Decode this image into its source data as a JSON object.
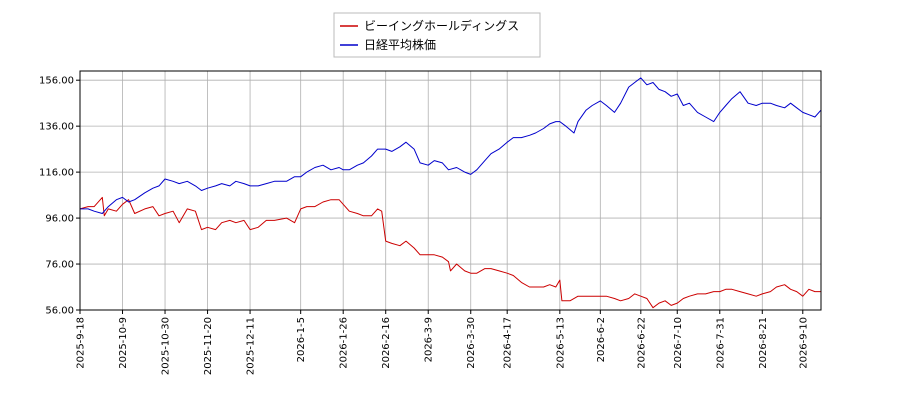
{
  "chart_data": {
    "type": "line",
    "title": "",
    "xlabel": "",
    "ylabel": "",
    "ylim": [
      56,
      160
    ],
    "xlim": [
      "2025-09-18",
      "2026-09-19"
    ],
    "grid": true,
    "legend_position": "top-center",
    "yticks": [
      {
        "value": 56,
        "label": "56.00"
      },
      {
        "value": 76,
        "label": "76.00"
      },
      {
        "value": 96,
        "label": "96.00"
      },
      {
        "value": 116,
        "label": "116.00"
      },
      {
        "value": 136,
        "label": "136.00"
      },
      {
        "value": 156,
        "label": "156.00"
      }
    ],
    "xticks": [
      {
        "date": "2025-09-18",
        "label": "2025-9-18"
      },
      {
        "date": "2025-10-09",
        "label": "2025-10-9"
      },
      {
        "date": "2025-10-30",
        "label": "2025-10-30"
      },
      {
        "date": "2025-11-20",
        "label": "2025-11-20"
      },
      {
        "date": "2025-12-11",
        "label": "2025-12-11"
      },
      {
        "date": "2026-01-05",
        "label": "2026-1-5"
      },
      {
        "date": "2026-01-26",
        "label": "2026-1-26"
      },
      {
        "date": "2026-02-16",
        "label": "2026-2-16"
      },
      {
        "date": "2026-03-09",
        "label": "2026-3-9"
      },
      {
        "date": "2026-03-30",
        "label": "2026-3-30"
      },
      {
        "date": "2026-04-17",
        "label": "2026-4-17"
      },
      {
        "date": "2026-05-13",
        "label": "2026-5-13"
      },
      {
        "date": "2026-06-02",
        "label": "2026-6-2"
      },
      {
        "date": "2026-06-22",
        "label": "2026-6-22"
      },
      {
        "date": "2026-07-10",
        "label": "2026-7-10"
      },
      {
        "date": "2026-07-31",
        "label": "2026-7-31"
      },
      {
        "date": "2026-08-21",
        "label": "2026-8-21"
      },
      {
        "date": "2026-09-10",
        "label": "2026-9-10"
      }
    ],
    "series": [
      {
        "name": "ビーイングホールディングス",
        "color": "#cc0000",
        "points": [
          [
            "2025-09-18",
            100
          ],
          [
            "2025-09-22",
            101
          ],
          [
            "2025-09-25",
            101
          ],
          [
            "2025-09-29",
            105
          ],
          [
            "2025-09-30",
            97
          ],
          [
            "2025-10-02",
            100
          ],
          [
            "2025-10-06",
            99
          ],
          [
            "2025-10-09",
            102
          ],
          [
            "2025-10-12",
            104
          ],
          [
            "2025-10-15",
            98
          ],
          [
            "2025-10-20",
            100
          ],
          [
            "2025-10-24",
            101
          ],
          [
            "2025-10-27",
            97
          ],
          [
            "2025-10-30",
            98
          ],
          [
            "2025-11-03",
            99
          ],
          [
            "2025-11-06",
            94
          ],
          [
            "2025-11-10",
            100
          ],
          [
            "2025-11-14",
            99
          ],
          [
            "2025-11-17",
            91
          ],
          [
            "2025-11-20",
            92
          ],
          [
            "2025-11-24",
            91
          ],
          [
            "2025-11-27",
            94
          ],
          [
            "2025-12-01",
            95
          ],
          [
            "2025-12-04",
            94
          ],
          [
            "2025-12-08",
            95
          ],
          [
            "2025-12-11",
            91
          ],
          [
            "2025-12-15",
            92
          ],
          [
            "2025-12-19",
            95
          ],
          [
            "2025-12-23",
            95
          ],
          [
            "2025-12-29",
            96
          ],
          [
            "2026-01-02",
            94
          ],
          [
            "2026-01-05",
            100
          ],
          [
            "2026-01-08",
            101
          ],
          [
            "2026-01-12",
            101
          ],
          [
            "2026-01-16",
            103
          ],
          [
            "2026-01-20",
            104
          ],
          [
            "2026-01-24",
            104
          ],
          [
            "2026-01-26",
            102
          ],
          [
            "2026-01-29",
            99
          ],
          [
            "2026-02-02",
            98
          ],
          [
            "2026-02-05",
            97
          ],
          [
            "2026-02-09",
            97
          ],
          [
            "2026-02-12",
            100
          ],
          [
            "2026-02-14",
            99
          ],
          [
            "2026-02-16",
            86
          ],
          [
            "2026-02-19",
            85
          ],
          [
            "2026-02-23",
            84
          ],
          [
            "2026-02-26",
            86
          ],
          [
            "2026-03-02",
            83
          ],
          [
            "2026-03-05",
            80
          ],
          [
            "2026-03-09",
            80
          ],
          [
            "2026-03-12",
            80
          ],
          [
            "2026-03-16",
            79
          ],
          [
            "2026-03-19",
            77
          ],
          [
            "2026-03-20",
            73
          ],
          [
            "2026-03-23",
            76
          ],
          [
            "2026-03-27",
            73
          ],
          [
            "2026-03-30",
            72
          ],
          [
            "2026-04-02",
            72
          ],
          [
            "2026-04-06",
            74
          ],
          [
            "2026-04-09",
            74
          ],
          [
            "2026-04-13",
            73
          ],
          [
            "2026-04-17",
            72
          ],
          [
            "2026-04-20",
            71
          ],
          [
            "2026-04-24",
            68
          ],
          [
            "2026-04-28",
            66
          ],
          [
            "2026-05-01",
            66
          ],
          [
            "2026-05-05",
            66
          ],
          [
            "2026-05-08",
            67
          ],
          [
            "2026-05-11",
            66
          ],
          [
            "2026-05-13",
            69
          ],
          [
            "2026-05-14",
            60
          ],
          [
            "2026-05-18",
            60
          ],
          [
            "2026-05-22",
            62
          ],
          [
            "2026-05-26",
            62
          ],
          [
            "2026-05-29",
            62
          ],
          [
            "2026-06-02",
            62
          ],
          [
            "2026-06-05",
            62
          ],
          [
            "2026-06-09",
            61
          ],
          [
            "2026-06-12",
            60
          ],
          [
            "2026-06-16",
            61
          ],
          [
            "2026-06-19",
            63
          ],
          [
            "2026-06-22",
            62
          ],
          [
            "2026-06-25",
            61
          ],
          [
            "2026-06-28",
            57
          ],
          [
            "2026-07-01",
            59
          ],
          [
            "2026-07-04",
            60
          ],
          [
            "2026-07-07",
            58
          ],
          [
            "2026-07-10",
            59
          ],
          [
            "2026-07-13",
            61
          ],
          [
            "2026-07-16",
            62
          ],
          [
            "2026-07-20",
            63
          ],
          [
            "2026-07-24",
            63
          ],
          [
            "2026-07-28",
            64
          ],
          [
            "2026-07-31",
            64
          ],
          [
            "2026-08-03",
            65
          ],
          [
            "2026-08-06",
            65
          ],
          [
            "2026-08-10",
            64
          ],
          [
            "2026-08-14",
            63
          ],
          [
            "2026-08-18",
            62
          ],
          [
            "2026-08-21",
            63
          ],
          [
            "2026-08-25",
            64
          ],
          [
            "2026-08-28",
            66
          ],
          [
            "2026-09-01",
            67
          ],
          [
            "2026-09-04",
            65
          ],
          [
            "2026-09-07",
            64
          ],
          [
            "2026-09-10",
            62
          ],
          [
            "2026-09-13",
            65
          ],
          [
            "2026-09-16",
            64
          ],
          [
            "2026-09-19",
            64
          ]
        ]
      },
      {
        "name": "日経平均株価",
        "color": "#0000cc",
        "points": [
          [
            "2025-09-18",
            100
          ],
          [
            "2025-09-22",
            100
          ],
          [
            "2025-09-25",
            99
          ],
          [
            "2025-09-29",
            98
          ],
          [
            "2025-10-02",
            101
          ],
          [
            "2025-10-06",
            104
          ],
          [
            "2025-10-09",
            105
          ],
          [
            "2025-10-12",
            103
          ],
          [
            "2025-10-15",
            104
          ],
          [
            "2025-10-20",
            107
          ],
          [
            "2025-10-24",
            109
          ],
          [
            "2025-10-27",
            110
          ],
          [
            "2025-10-30",
            113
          ],
          [
            "2025-11-03",
            112
          ],
          [
            "2025-11-06",
            111
          ],
          [
            "2025-11-10",
            112
          ],
          [
            "2025-11-14",
            110
          ],
          [
            "2025-11-17",
            108
          ],
          [
            "2025-11-20",
            109
          ],
          [
            "2025-11-24",
            110
          ],
          [
            "2025-11-27",
            111
          ],
          [
            "2025-12-01",
            110
          ],
          [
            "2025-12-04",
            112
          ],
          [
            "2025-12-08",
            111
          ],
          [
            "2025-12-11",
            110
          ],
          [
            "2025-12-15",
            110
          ],
          [
            "2025-12-19",
            111
          ],
          [
            "2025-12-23",
            112
          ],
          [
            "2025-12-29",
            112
          ],
          [
            "2026-01-02",
            114
          ],
          [
            "2026-01-05",
            114
          ],
          [
            "2026-01-08",
            116
          ],
          [
            "2026-01-12",
            118
          ],
          [
            "2026-01-16",
            119
          ],
          [
            "2026-01-20",
            117
          ],
          [
            "2026-01-24",
            118
          ],
          [
            "2026-01-26",
            117
          ],
          [
            "2026-01-29",
            117
          ],
          [
            "2026-02-02",
            119
          ],
          [
            "2026-02-05",
            120
          ],
          [
            "2026-02-09",
            123
          ],
          [
            "2026-02-12",
            126
          ],
          [
            "2026-02-16",
            126
          ],
          [
            "2026-02-19",
            125
          ],
          [
            "2026-02-23",
            127
          ],
          [
            "2026-02-26",
            129
          ],
          [
            "2026-03-02",
            126
          ],
          [
            "2026-03-05",
            120
          ],
          [
            "2026-03-09",
            119
          ],
          [
            "2026-03-12",
            121
          ],
          [
            "2026-03-16",
            120
          ],
          [
            "2026-03-19",
            117
          ],
          [
            "2026-03-23",
            118
          ],
          [
            "2026-03-27",
            116
          ],
          [
            "2026-03-30",
            115
          ],
          [
            "2026-04-02",
            117
          ],
          [
            "2026-04-06",
            121
          ],
          [
            "2026-04-09",
            124
          ],
          [
            "2026-04-13",
            126
          ],
          [
            "2026-04-17",
            129
          ],
          [
            "2026-04-20",
            131
          ],
          [
            "2026-04-24",
            131
          ],
          [
            "2026-04-28",
            132
          ],
          [
            "2026-05-01",
            133
          ],
          [
            "2026-05-05",
            135
          ],
          [
            "2026-05-08",
            137
          ],
          [
            "2026-05-11",
            138
          ],
          [
            "2026-05-13",
            138
          ],
          [
            "2026-05-16",
            136
          ],
          [
            "2026-05-20",
            133
          ],
          [
            "2026-05-22",
            138
          ],
          [
            "2026-05-26",
            143
          ],
          [
            "2026-05-29",
            145
          ],
          [
            "2026-06-02",
            147
          ],
          [
            "2026-06-05",
            145
          ],
          [
            "2026-06-09",
            142
          ],
          [
            "2026-06-12",
            146
          ],
          [
            "2026-06-16",
            153
          ],
          [
            "2026-06-19",
            155
          ],
          [
            "2026-06-22",
            157
          ],
          [
            "2026-06-25",
            154
          ],
          [
            "2026-06-28",
            155
          ],
          [
            "2026-07-01",
            152
          ],
          [
            "2026-07-04",
            151
          ],
          [
            "2026-07-07",
            149
          ],
          [
            "2026-07-10",
            150
          ],
          [
            "2026-07-13",
            145
          ],
          [
            "2026-07-16",
            146
          ],
          [
            "2026-07-20",
            142
          ],
          [
            "2026-07-24",
            140
          ],
          [
            "2026-07-28",
            138
          ],
          [
            "2026-07-31",
            142
          ],
          [
            "2026-08-03",
            145
          ],
          [
            "2026-08-06",
            148
          ],
          [
            "2026-08-10",
            151
          ],
          [
            "2026-08-14",
            146
          ],
          [
            "2026-08-18",
            145
          ],
          [
            "2026-08-21",
            146
          ],
          [
            "2026-08-25",
            146
          ],
          [
            "2026-08-28",
            145
          ],
          [
            "2026-09-01",
            144
          ],
          [
            "2026-09-04",
            146
          ],
          [
            "2026-09-07",
            144
          ],
          [
            "2026-09-10",
            142
          ],
          [
            "2026-09-13",
            141
          ],
          [
            "2026-09-16",
            140
          ],
          [
            "2026-09-19",
            143
          ]
        ]
      }
    ]
  }
}
